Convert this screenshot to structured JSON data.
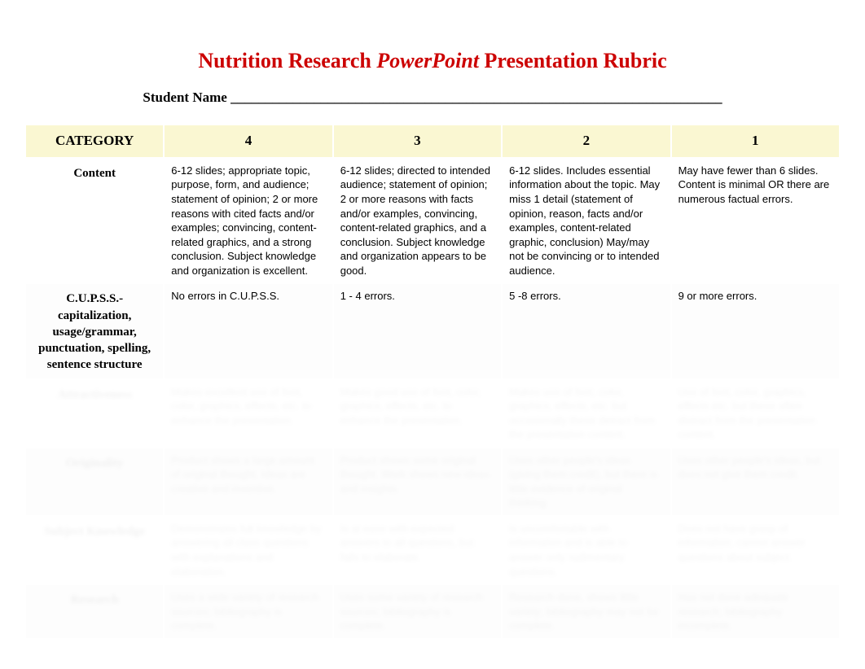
{
  "title": {
    "part1": "Nutrition Research ",
    "emph": "PowerPoint",
    "part2": " Presentation Rubric",
    "color": "#cc0000"
  },
  "student_line": "Student Name _______________________________________________________________________",
  "headers": {
    "category": "CATEGORY",
    "c4": "4",
    "c3": "3",
    "c2": "2",
    "c1": "1"
  },
  "header_bg": "#faf7d2",
  "rows": [
    {
      "category": "Content",
      "c4": "6-12 slides; appropriate topic, purpose, form, and audience; statement of opinion; 2 or more reasons with cited facts and/or examples; convincing, content-related graphics, and a strong conclusion. Subject knowledge and organization is excellent.",
      "c3": "6-12 slides; directed to intended audience; statement of opinion; 2 or more reasons with facts and/or examples, convincing, content-related graphics, and a conclusion. Subject knowledge and organization appears to be good.",
      "c2": "6-12 slides. Includes essential information about the topic. May miss 1 detail (statement of opinion, reason, facts and/or examples, content-related graphic, conclusion) May/may not be convincing or to intended audience.",
      "c1": "May have fewer than 6 slides. Content is minimal OR there are numerous factual errors.",
      "obscured": false
    },
    {
      "category": "C.U.P.S.S.- capitalization, usage/grammar, punctuation, spelling, sentence structure",
      "c4": "No errors in C.U.P.S.S.",
      "c3": "1 - 4 errors.",
      "c2": "5 -8 errors.",
      "c1": "9 or more errors.",
      "obscured": false
    },
    {
      "category": "Attractiveness",
      "c4": "Makes excellent use of font, color, graphics, effects, etc. to enhance the presentation.",
      "c3": "Makes good use of font, color, graphics, effects, etc. to enhance the presentation.",
      "c2": "Makes use of font, color, graphics, effects, etc. but occasionally these detract from the presentation content.",
      "c1": "Use of font, color, graphics, effects etc. but these often distract from the presentation content.",
      "obscured": true
    },
    {
      "category": "Originality",
      "c4": "Product shows a large amount of original thought. Ideas are creative and inventive.",
      "c3": "Product shows some original thought. Work shows new ideas and insights.",
      "c2": "Uses other people's ideas (giving them credit), but there is little evidence of original thinking.",
      "c3b": "",
      "c1": "Uses other people's ideas, but does not give them credit.",
      "obscured": true
    },
    {
      "category": "Subject Knowledge",
      "c4": "Demonstrates full knowledge by answering all class questions with explanations and elaboration.",
      "c3": "Is at ease with expected answers to all questions, but fails to elaborate.",
      "c2": "Is uncomfortable with information and is able to answer only rudimentary questions.",
      "c1": "Does not have grasp of information; cannot answer questions about subject.",
      "obscured": true
    },
    {
      "category": "Research",
      "c4": "Uses a wide variety of research sources; bibliography is complete.",
      "c3": "Uses some variety of research sources; bibliography is complete.",
      "c2": "Research done, shows little variety; bibliography may not be complete.",
      "c1": "Has not done adequate research; bibliography incomplete.",
      "obscured": true
    }
  ]
}
